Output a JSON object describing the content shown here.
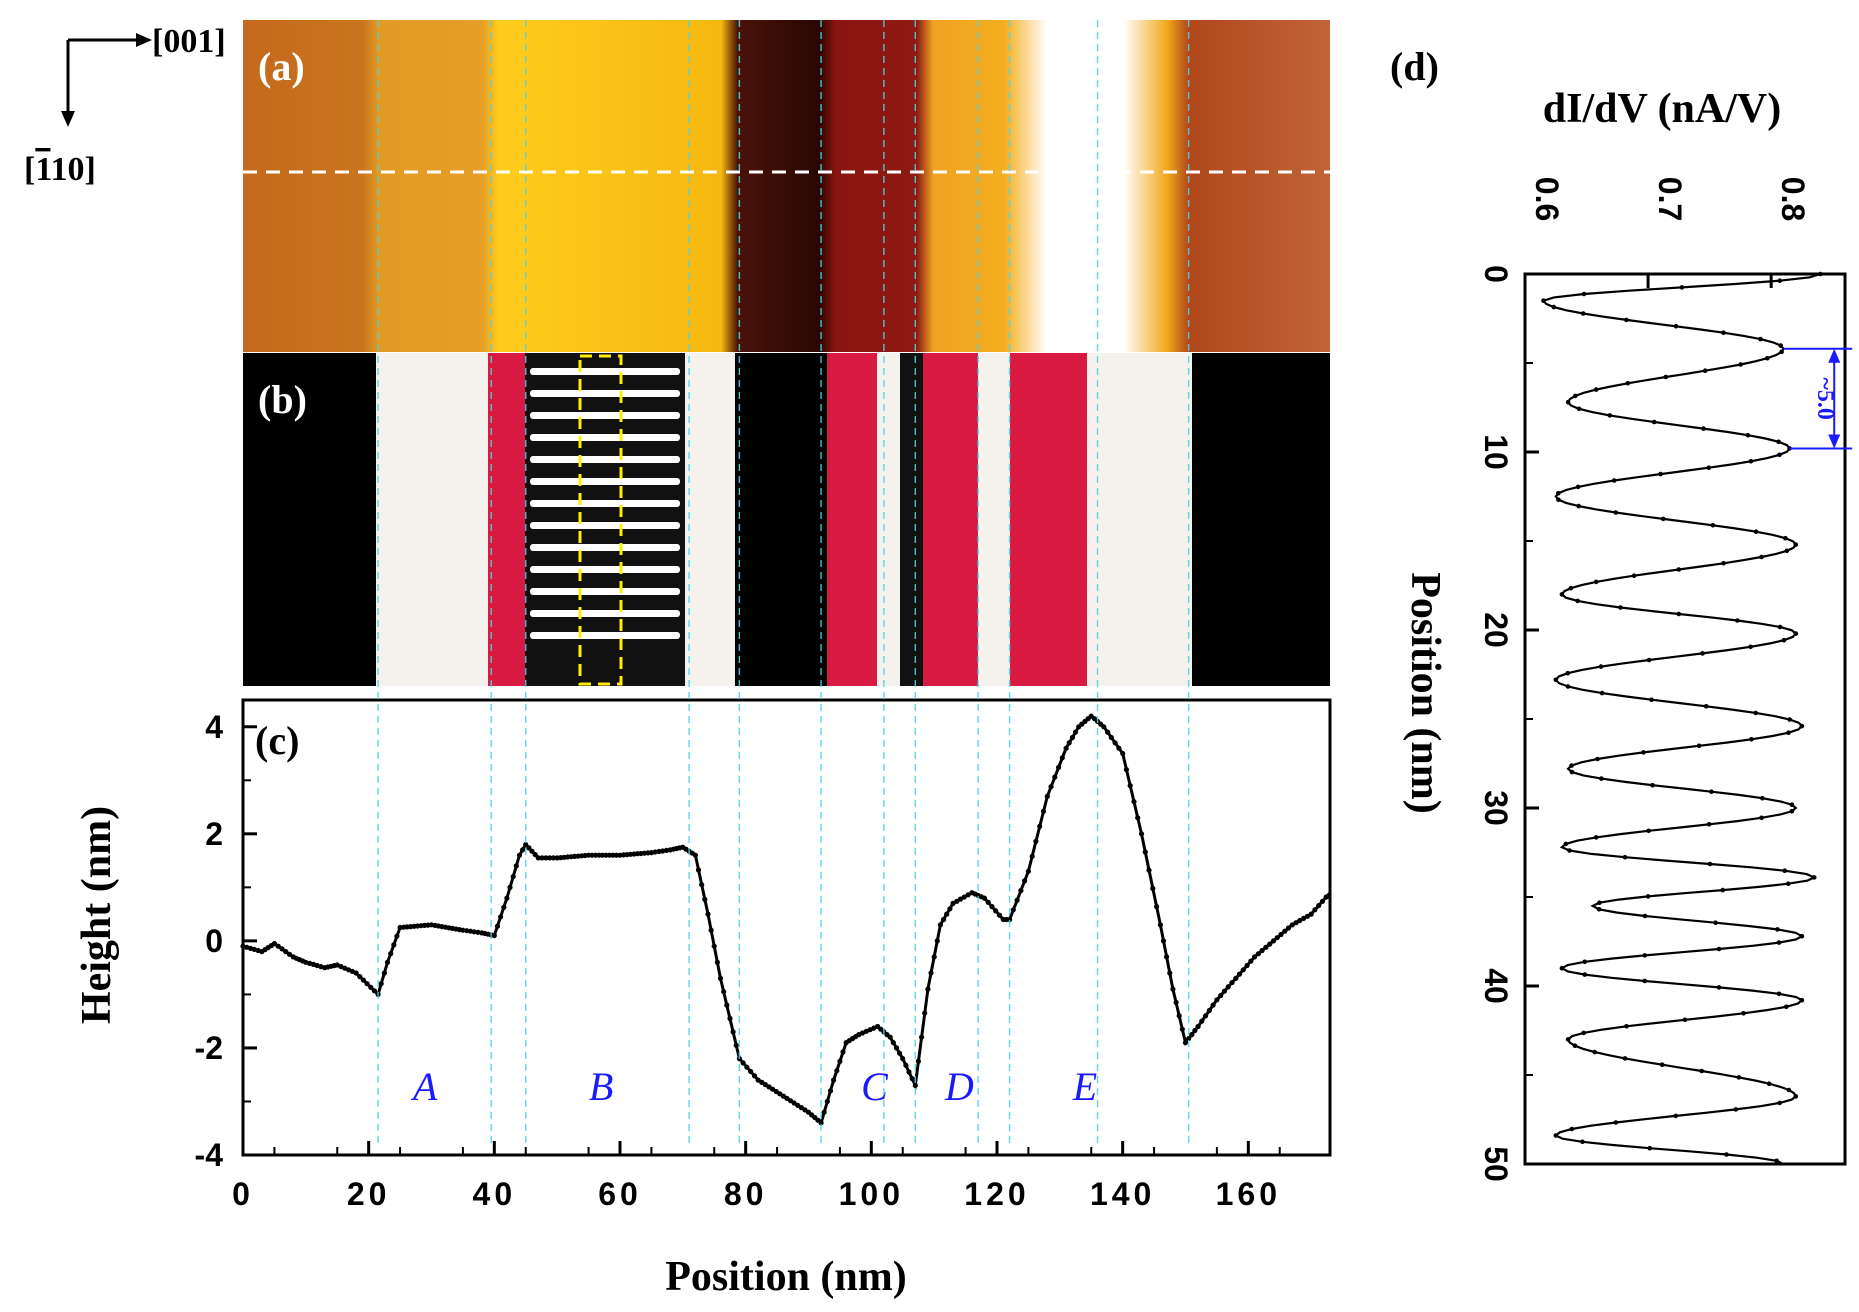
{
  "figure": {
    "panels": {
      "a": "(a)",
      "b": "(b)",
      "c": "(c)",
      "d": "(d)"
    },
    "directions": {
      "horizontal": "[001]",
      "vertical": "[1̵10]",
      "vertical_plain": "[110]"
    },
    "region_labels": [
      "A",
      "B",
      "C",
      "D",
      "E"
    ],
    "spacing_annotation": "~5.0"
  },
  "chart_data": [
    {
      "id": "c",
      "type": "line",
      "panel_label": "(c)",
      "xlabel": "Position (nm)",
      "ylabel": "Height (nm)",
      "xlim": [
        0,
        173
      ],
      "ylim": [
        -4,
        4.5
      ],
      "xticks": [
        0,
        20,
        40,
        60,
        80,
        100,
        120,
        140,
        160
      ],
      "yticks": [
        -4,
        -2,
        0,
        2,
        4
      ],
      "x": [
        0,
        3,
        5,
        8,
        10,
        13,
        15,
        18,
        21.5,
        23,
        25,
        30,
        35,
        38,
        40,
        42,
        44,
        45,
        47,
        50,
        55,
        60,
        65,
        68,
        70,
        72,
        74,
        76,
        78,
        79,
        82,
        86,
        90,
        92,
        94,
        96,
        98,
        101,
        103,
        105,
        107,
        109,
        111,
        113,
        116,
        118,
        121,
        122,
        125,
        128,
        131,
        133,
        135,
        137,
        140,
        143,
        146,
        148,
        150,
        152,
        155,
        158,
        161,
        164,
        167,
        170,
        173
      ],
      "y": [
        -0.1,
        -0.2,
        -0.05,
        -0.3,
        -0.4,
        -0.5,
        -0.45,
        -0.6,
        -1.0,
        -0.4,
        0.25,
        0.3,
        0.2,
        0.15,
        0.1,
        0.8,
        1.6,
        1.8,
        1.55,
        1.55,
        1.6,
        1.6,
        1.65,
        1.7,
        1.75,
        1.6,
        0.5,
        -0.7,
        -1.7,
        -2.2,
        -2.6,
        -2.9,
        -3.2,
        -3.4,
        -2.6,
        -1.9,
        -1.75,
        -1.6,
        -1.8,
        -2.2,
        -2.7,
        -0.9,
        0.3,
        0.7,
        0.9,
        0.8,
        0.4,
        0.4,
        1.3,
        2.7,
        3.6,
        4.0,
        4.2,
        4.0,
        3.5,
        2.0,
        0.3,
        -0.9,
        -1.9,
        -1.6,
        -1.1,
        -0.7,
        -0.3,
        0.0,
        0.3,
        0.5,
        0.9
      ],
      "region_boundaries_nm": [
        21.5,
        39.5,
        45,
        71,
        79,
        92,
        102,
        107,
        117,
        122,
        136,
        150.5
      ]
    },
    {
      "id": "d",
      "type": "line",
      "panel_label": "(d)",
      "xlabel": "dI/dV (nA/V)",
      "ylabel": "Position (nm)",
      "xlim": [
        0.6,
        0.86
      ],
      "ylim": [
        0,
        50
      ],
      "xticks": [
        0.6,
        0.7,
        0.8
      ],
      "yticks": [
        0,
        10,
        20,
        30,
        40,
        50
      ],
      "position_nm": [
        1.5,
        4.2,
        7.2,
        9.8,
        12.5,
        15.2,
        18.0,
        20.2,
        22.8,
        25.4,
        27.8,
        30.0,
        32.2,
        33.9,
        35.5,
        37.2,
        39.0,
        40.8,
        43.0,
        46.2,
        48.4
      ],
      "didv": [
        0.615,
        0.81,
        0.635,
        0.815,
        0.625,
        0.82,
        0.63,
        0.82,
        0.625,
        0.825,
        0.635,
        0.82,
        0.63,
        0.835,
        0.655,
        0.825,
        0.63,
        0.825,
        0.635,
        0.82,
        0.625
      ],
      "curve_end": [
        0.81,
        50
      ]
    }
  ]
}
